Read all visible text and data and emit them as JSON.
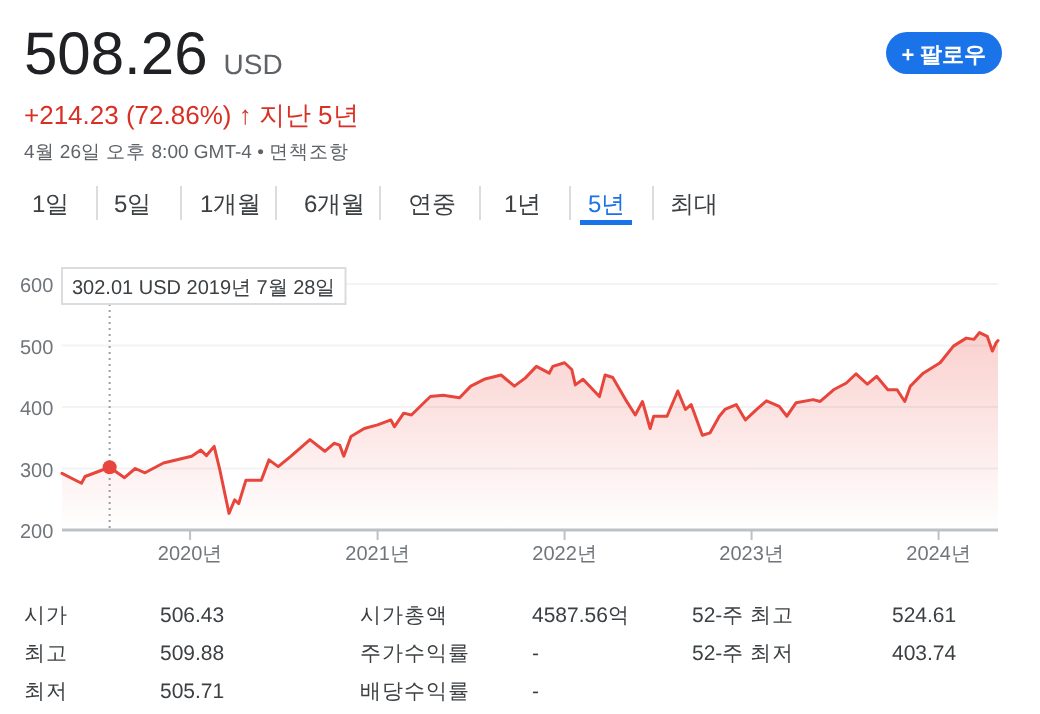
{
  "chart_data": {
    "type": "area",
    "title": "508.26",
    "annotations": [
      "USD",
      "+214.23 (72.86%) ↑ 지난 5년",
      "4월 26일 오후 8:00 GMT-4 • 면책조항",
      "+ 팔로우",
      "1일",
      "5일",
      "1개월",
      "6개월",
      "연중",
      "1년",
      "5년",
      "최대",
      "302.01 USD  2019년 7월 28일",
      "시가",
      "506.43",
      "시가총액",
      "4587.56억",
      "52-주 최고",
      "524.61",
      "최고",
      "509.88",
      "주가수익률",
      "-",
      "52-주 최저",
      "403.74",
      "최저",
      "505.71",
      "배당수익률",
      "-"
    ],
    "series": [
      {
        "type": "scatter",
        "color": "#e8453c",
        "x": [
          "2019-07-28"
        ],
        "values": [
          302.01
        ]
      },
      {
        "color": "#e8453c",
        "x": [
          "2019-04-26",
          "2019-06-03",
          "2019-06-10",
          "2019-07-28",
          "2019-08-26",
          "2019-09-16",
          "2019-10-05",
          "2019-11-10",
          "2020-01-04",
          "2020-01-22",
          "2020-02-02",
          "2020-02-17",
          "2020-02-28",
          "2020-03-17",
          "2020-03-28",
          "2020-04-05",
          "2020-04-19",
          "2020-05-19",
          "2020-06-03",
          "2020-06-21",
          "2020-07-16",
          "2020-08-22",
          "2020-09-20",
          "2020-10-08",
          "2020-10-19",
          "2020-10-27",
          "2020-11-10",
          "2020-12-06",
          "2021-01-01",
          "2021-01-27",
          "2021-02-03",
          "2021-02-21",
          "2021-03-08",
          "2021-04-14",
          "2021-05-09",
          "2021-06-10",
          "2021-07-02",
          "2021-07-28",
          "2021-08-30",
          "2021-09-25",
          "2021-10-16",
          "2021-11-07",
          "2021-12-02",
          "2021-12-09",
          "2022-01-01",
          "2022-01-15",
          "2022-01-22",
          "2022-02-06",
          "2022-03-10",
          "2022-03-21",
          "2022-04-05",
          "2022-04-30",
          "2022-05-19",
          "2022-06-02",
          "2022-06-17",
          "2022-06-24",
          "2022-07-20",
          "2022-08-10",
          "2022-08-25",
          "2022-09-05",
          "2022-09-27",
          "2022-10-12",
          "2022-10-30",
          "2022-11-10",
          "2022-12-02",
          "2022-12-20",
          "2023-01-11",
          "2023-01-30",
          "2023-02-24",
          "2023-03-11",
          "2023-03-29",
          "2023-05-01",
          "2023-05-15",
          "2023-06-10",
          "2023-07-05",
          "2023-07-24",
          "2023-08-15",
          "2023-09-02",
          "2023-09-24",
          "2023-10-12",
          "2023-10-27",
          "2023-11-07",
          "2023-12-02",
          "2024-01-04",
          "2024-01-30",
          "2024-02-24",
          "2024-03-10",
          "2024-03-21",
          "2024-04-05",
          "2024-04-15",
          "2024-04-22",
          "2024-04-26"
        ],
        "values": [
          292,
          276,
          287,
          302,
          285,
          300,
          293,
          309,
          320,
          330,
          321,
          336,
          298,
          227,
          249,
          243,
          281,
          281,
          314,
          303,
          320,
          347,
          328,
          341,
          338,
          320,
          352,
          365,
          371,
          379,
          368,
          390,
          387,
          417,
          419,
          415,
          434,
          445,
          452,
          434,
          447,
          466,
          455,
          466,
          472,
          461,
          436,
          445,
          417,
          452,
          448,
          412,
          387,
          409,
          365,
          385,
          385,
          426,
          396,
          404,
          354,
          358,
          385,
          396,
          404,
          379,
          396,
          410,
          401,
          385,
          407,
          412,
          409,
          428,
          439,
          454,
          437,
          450,
          428,
          428,
          409,
          434,
          455,
          472,
          499,
          512,
          510,
          521,
          515,
          491,
          504,
          508
        ]
      }
    ],
    "xlim": [
      "2019-04-26",
      "2024-04-26"
    ],
    "xticks": [
      {
        "value": "2020-01-01",
        "label": "2020년"
      },
      {
        "value": "2021-01-01",
        "label": "2021년"
      },
      {
        "value": "2022-01-01",
        "label": "2022년"
      },
      {
        "value": "2023-01-01",
        "label": "2023년"
      },
      {
        "value": "2024-01-01",
        "label": "2024년"
      }
    ],
    "ref_lines": [
      {
        "axis": "x",
        "value": "2019-07-28",
        "color": "#9aa0a6",
        "line_style": "dotted"
      }
    ],
    "ylim": [
      200,
      600
    ],
    "yticks": [
      200,
      300,
      400,
      500,
      600
    ],
    "grid": "y"
  }
}
